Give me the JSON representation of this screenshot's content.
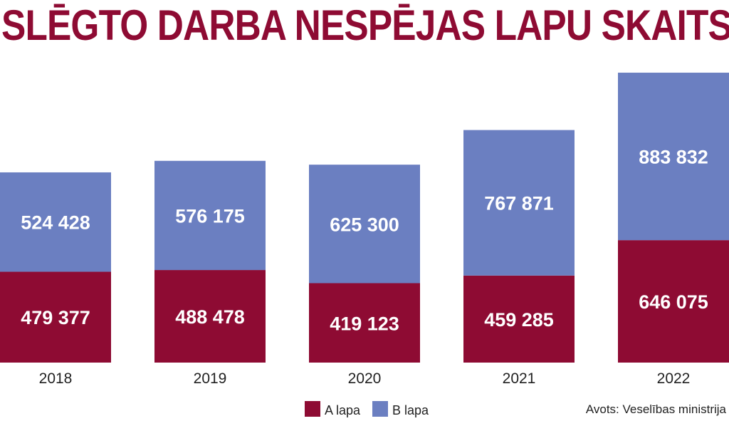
{
  "title": "SLĒGTO DARBA NESPĒJAS LAPU SKAITS",
  "source": "Avots: Veselības ministrija",
  "colors": {
    "title": "#8e0b33",
    "series_a": "#8e0b33",
    "series_b": "#6b7fc1",
    "value_label": "#ffffff"
  },
  "chart_data": {
    "type": "bar",
    "stacked": true,
    "categories": [
      "2018",
      "2019",
      "2020",
      "2021",
      "2022"
    ],
    "series": [
      {
        "name": "A lapa",
        "values": [
          479377,
          488478,
          419123,
          459285,
          646075
        ],
        "labels": [
          "479 377",
          "488 478",
          "419 123",
          "459 285",
          "646 075"
        ]
      },
      {
        "name": "B lapa",
        "values": [
          524428,
          576175,
          625300,
          767871,
          883832
        ],
        "labels": [
          "524 428",
          "576 175",
          "625 300",
          "767 871",
          "883 832"
        ]
      }
    ],
    "title": "SLĒGTO DARBA NESPĒJAS LAPU SKAITS",
    "xlabel": "",
    "ylabel": "",
    "ylim": [
      0,
      1530000
    ],
    "grid": false,
    "legend": "bottom-right"
  }
}
